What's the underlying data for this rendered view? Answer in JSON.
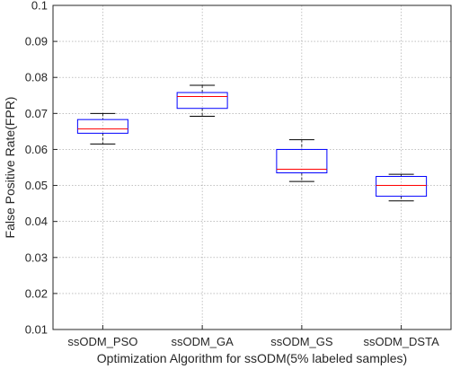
{
  "chart_data": {
    "type": "box",
    "title": "",
    "xlabel": "Optimization Algorithm for ssODM(5% labeled samples)",
    "ylabel": "False Positive Rate(FPR)",
    "ylim": [
      0.01,
      0.1
    ],
    "yticks": [
      0.01,
      0.02,
      0.03,
      0.04,
      0.05,
      0.06,
      0.07,
      0.08,
      0.09,
      0.1
    ],
    "ytick_labels": [
      "0.01",
      "0.02",
      "0.03",
      "0.04",
      "0.05",
      "0.06",
      "0.07",
      "0.08",
      "0.09",
      "0.1"
    ],
    "grid": true,
    "categories": [
      "ssODM_PSO",
      "ssODM_GA",
      "ssODM_GS",
      "ssODM_DSTA"
    ],
    "boxes": [
      {
        "whisker_low": 0.0615,
        "q1": 0.0645,
        "median": 0.0657,
        "q3": 0.0683,
        "whisker_high": 0.07
      },
      {
        "whisker_low": 0.0692,
        "q1": 0.0714,
        "median": 0.0747,
        "q3": 0.0758,
        "whisker_high": 0.0778
      },
      {
        "whisker_low": 0.0511,
        "q1": 0.0535,
        "median": 0.0545,
        "q3": 0.06,
        "whisker_high": 0.0627
      },
      {
        "whisker_low": 0.0457,
        "q1": 0.047,
        "median": 0.05,
        "q3": 0.0525,
        "whisker_high": 0.0531
      }
    ],
    "colors": {
      "box": "#0000ff",
      "median": "#ff0000",
      "whisker": "#000000",
      "grid": "#262626",
      "axis": "#262626"
    }
  }
}
